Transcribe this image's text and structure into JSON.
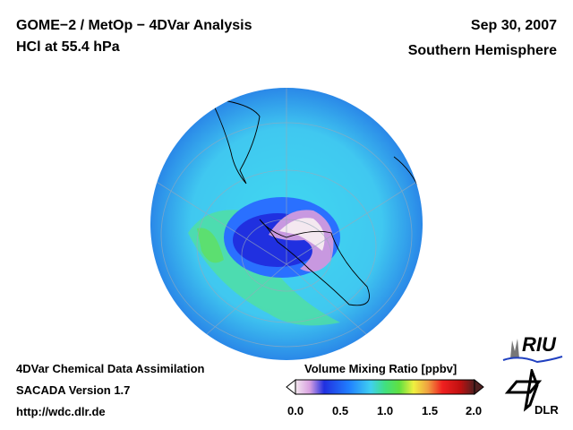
{
  "header": {
    "title": "GOME−2 / MetOp − 4DVar Analysis",
    "species": "HCl at 55.4 hPa",
    "date": "Sep 30, 2007",
    "region": "Southern Hemisphere"
  },
  "footer": {
    "line1": "4DVar Chemical Data Assimilation",
    "line2": "SACADA Version 1.7",
    "line3": "http://wdc.dlr.de"
  },
  "colorbar": {
    "title": "Volume Mixing Ratio [ppbv]",
    "ticks": [
      "0.0",
      "0.5",
      "1.0",
      "1.5",
      "2.0"
    ],
    "range": [
      0,
      2
    ],
    "colors": [
      "#f4e8f0",
      "#d8a0e0",
      "#2030e0",
      "#2080ff",
      "#40d0f0",
      "#40e080",
      "#60e040",
      "#f0f040",
      "#f0a040",
      "#f02020",
      "#c01010",
      "#502020"
    ]
  },
  "logos": {
    "riu": "RIU",
    "dlr": "DLR"
  }
}
